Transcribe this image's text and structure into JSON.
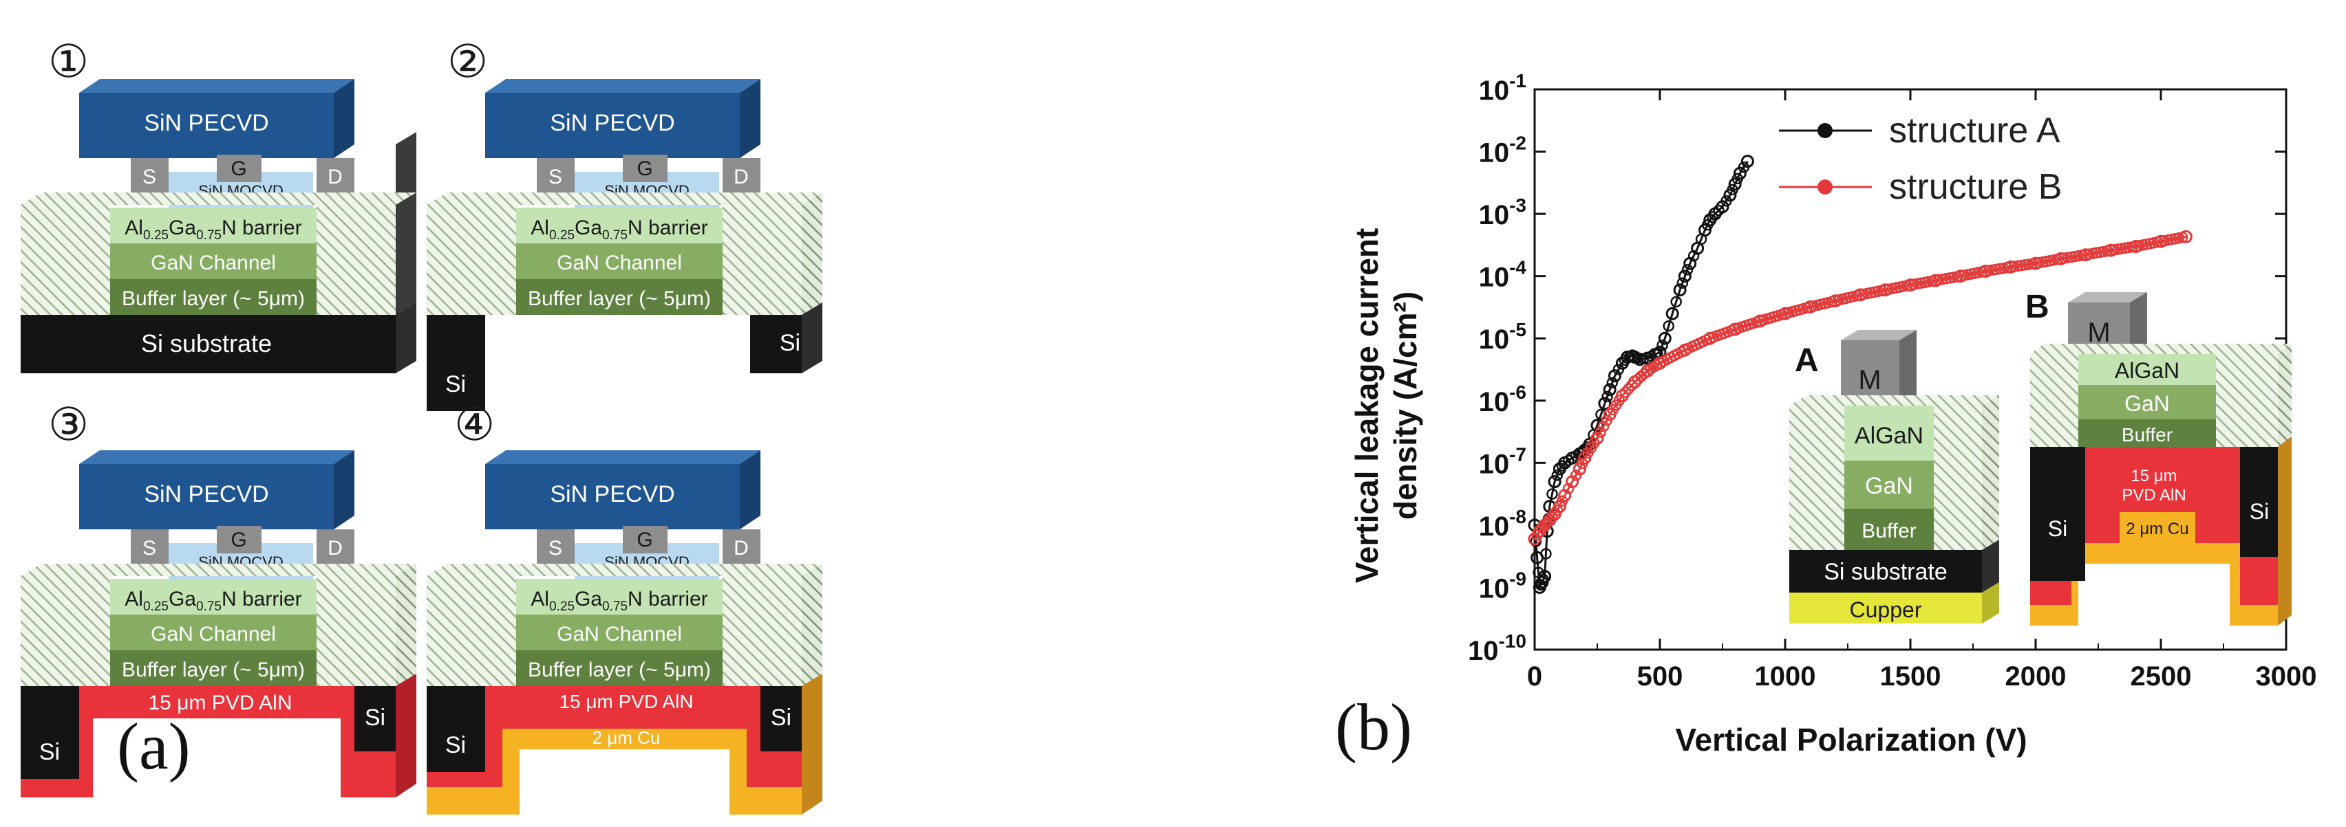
{
  "panel_a": {
    "label": "(a)",
    "devices": [
      {
        "number": "①",
        "layers": {
          "sin_pecvd": "SiN PECVD",
          "gate": "G",
          "source": "S",
          "drain": "D",
          "sin_mocvd": "SiN MOCVD",
          "barrier": {
            "al": "Al",
            "al_sub": "0.25",
            "ga": "Ga",
            "ga_sub": "0.75",
            "rest": "N barrier"
          },
          "channel": "GaN Channel",
          "buffer": "Buffer layer (~ 5μm)",
          "bottom": [
            "Si substrate"
          ]
        }
      },
      {
        "number": "②",
        "layers": {
          "sin_pecvd": "SiN PECVD",
          "gate": "G",
          "source": "S",
          "drain": "D",
          "sin_mocvd": "SiN MOCVD",
          "barrier": {
            "al": "Al",
            "al_sub": "0.25",
            "ga": "Ga",
            "ga_sub": "0.75",
            "rest": "N barrier"
          },
          "channel": "GaN Channel",
          "buffer": "Buffer layer (~ 5μm)",
          "bottom": [
            "Si",
            "Si"
          ]
        }
      },
      {
        "number": "③",
        "layers": {
          "sin_pecvd": "SiN PECVD",
          "gate": "G",
          "source": "S",
          "drain": "D",
          "sin_mocvd": "SiN MOCVD",
          "barrier": {
            "al": "Al",
            "al_sub": "0.25",
            "ga": "Ga",
            "ga_sub": "0.75",
            "rest": "N barrier"
          },
          "channel": "GaN Channel",
          "buffer": "Buffer layer (~ 5μm)",
          "bottom": [
            "15 μm PVD AlN",
            "Si",
            "Si"
          ]
        }
      },
      {
        "number": "④",
        "layers": {
          "sin_pecvd": "SiN PECVD",
          "gate": "G",
          "source": "S",
          "drain": "D",
          "sin_mocvd": "SiN MOCVD",
          "barrier": {
            "al": "Al",
            "al_sub": "0.25",
            "ga": "Ga",
            "ga_sub": "0.75",
            "rest": "N barrier"
          },
          "channel": "GaN Channel",
          "buffer": "Buffer layer (~ 5μm)",
          "bottom": [
            "15 μm PVD AlN",
            "2 μm Cu",
            "Si",
            "Si"
          ]
        }
      }
    ]
  },
  "panel_b": {
    "label": "(b)",
    "inset_a": {
      "label": "A",
      "layers": [
        "M",
        "AlGaN",
        "GaN",
        "Buffer",
        "Si substrate",
        "Cupper"
      ]
    },
    "inset_b": {
      "label": "B",
      "layers": [
        "M",
        "AlGaN",
        "GaN",
        "Buffer",
        "15 μm",
        "PVD AlN",
        "2 μm Cu",
        "Si",
        "Si"
      ]
    }
  },
  "colors": {
    "sin_pecvd": "#1f5591",
    "sin_mocvd": "#b8d9ef",
    "contact": "#8d8d8d",
    "barrier": "#c3e3b2",
    "channel": "#86ad62",
    "buffer": "#5e813f",
    "substrate": "#141414",
    "aln": "#e8333a",
    "copper": "#f5b223",
    "series_a": "#111111",
    "series_b": "#e23a3a"
  },
  "chart_data": {
    "type": "scatter",
    "title": "",
    "xlabel": "Vertical Polarization (V)",
    "ylabel_lines": [
      "Vertical leakage current",
      "density (A/cm²)"
    ],
    "yscale": "log",
    "xlim": [
      0,
      3000
    ],
    "ylim": [
      1e-10,
      0.1
    ],
    "xticks": [
      0,
      500,
      1000,
      1500,
      2000,
      2500,
      3000
    ],
    "yticks": [
      {
        "base": "10",
        "exp": "-1"
      },
      {
        "base": "10",
        "exp": "-2"
      },
      {
        "base": "10",
        "exp": "-3"
      },
      {
        "base": "10",
        "exp": "-4"
      },
      {
        "base": "10",
        "exp": "-5"
      },
      {
        "base": "10",
        "exp": "-6"
      },
      {
        "base": "10",
        "exp": "-7"
      },
      {
        "base": "10",
        "exp": "-8"
      },
      {
        "base": "10",
        "exp": "-9"
      },
      {
        "base": "10",
        "exp": "-10"
      }
    ],
    "legend_position": "top-left",
    "series": [
      {
        "name": "structure A",
        "color": "#111111",
        "x": [
          0,
          10,
          20,
          30,
          40,
          50,
          60,
          80,
          100,
          120,
          150,
          180,
          200,
          220,
          250,
          280,
          300,
          320,
          350,
          370,
          390,
          400,
          420,
          450,
          480,
          500,
          520,
          550,
          580,
          600,
          620,
          650,
          680,
          700,
          720,
          750,
          780,
          800,
          820,
          850
        ],
        "y": [
          1e-08,
          3e-09,
          1e-09,
          1.2e-09,
          1.5e-09,
          8e-09,
          2e-08,
          5e-08,
          8e-08,
          1e-07,
          1.2e-07,
          1.4e-07,
          1.6e-07,
          2e-07,
          4e-07,
          9e-07,
          1.5e-06,
          2.5e-06,
          4e-06,
          5e-06,
          5.2e-06,
          5e-06,
          4.6e-06,
          4.8e-06,
          5.5e-06,
          6e-06,
          1e-05,
          2.5e-05,
          6e-05,
          0.0001,
          0.00016,
          0.00028,
          0.00055,
          0.0008,
          0.001,
          0.0013,
          0.002,
          0.003,
          0.0045,
          0.007
        ]
      },
      {
        "name": "structure B",
        "color": "#e23a3a",
        "x": [
          0,
          20,
          40,
          60,
          80,
          100,
          120,
          150,
          180,
          200,
          250,
          300,
          350,
          400,
          450,
          500,
          600,
          700,
          800,
          900,
          1000,
          1100,
          1200,
          1300,
          1400,
          1500,
          1600,
          1700,
          1800,
          1900,
          2000,
          2100,
          2200,
          2300,
          2400,
          2500,
          2600
        ],
        "y": [
          6e-09,
          8e-09,
          1e-08,
          1.2e-08,
          1.5e-08,
          2e-08,
          3e-08,
          5e-08,
          8e-08,
          1.2e-07,
          2.5e-07,
          6e-07,
          1.2e-06,
          2e-06,
          3e-06,
          4e-06,
          6.5e-06,
          1e-05,
          1.4e-05,
          1.9e-05,
          2.5e-05,
          3.2e-05,
          4e-05,
          5e-05,
          6e-05,
          7.2e-05,
          8.5e-05,
          0.0001,
          0.00012,
          0.00014,
          0.00016,
          0.00019,
          0.00022,
          0.00026,
          0.0003,
          0.00036,
          0.00043
        ]
      }
    ]
  }
}
